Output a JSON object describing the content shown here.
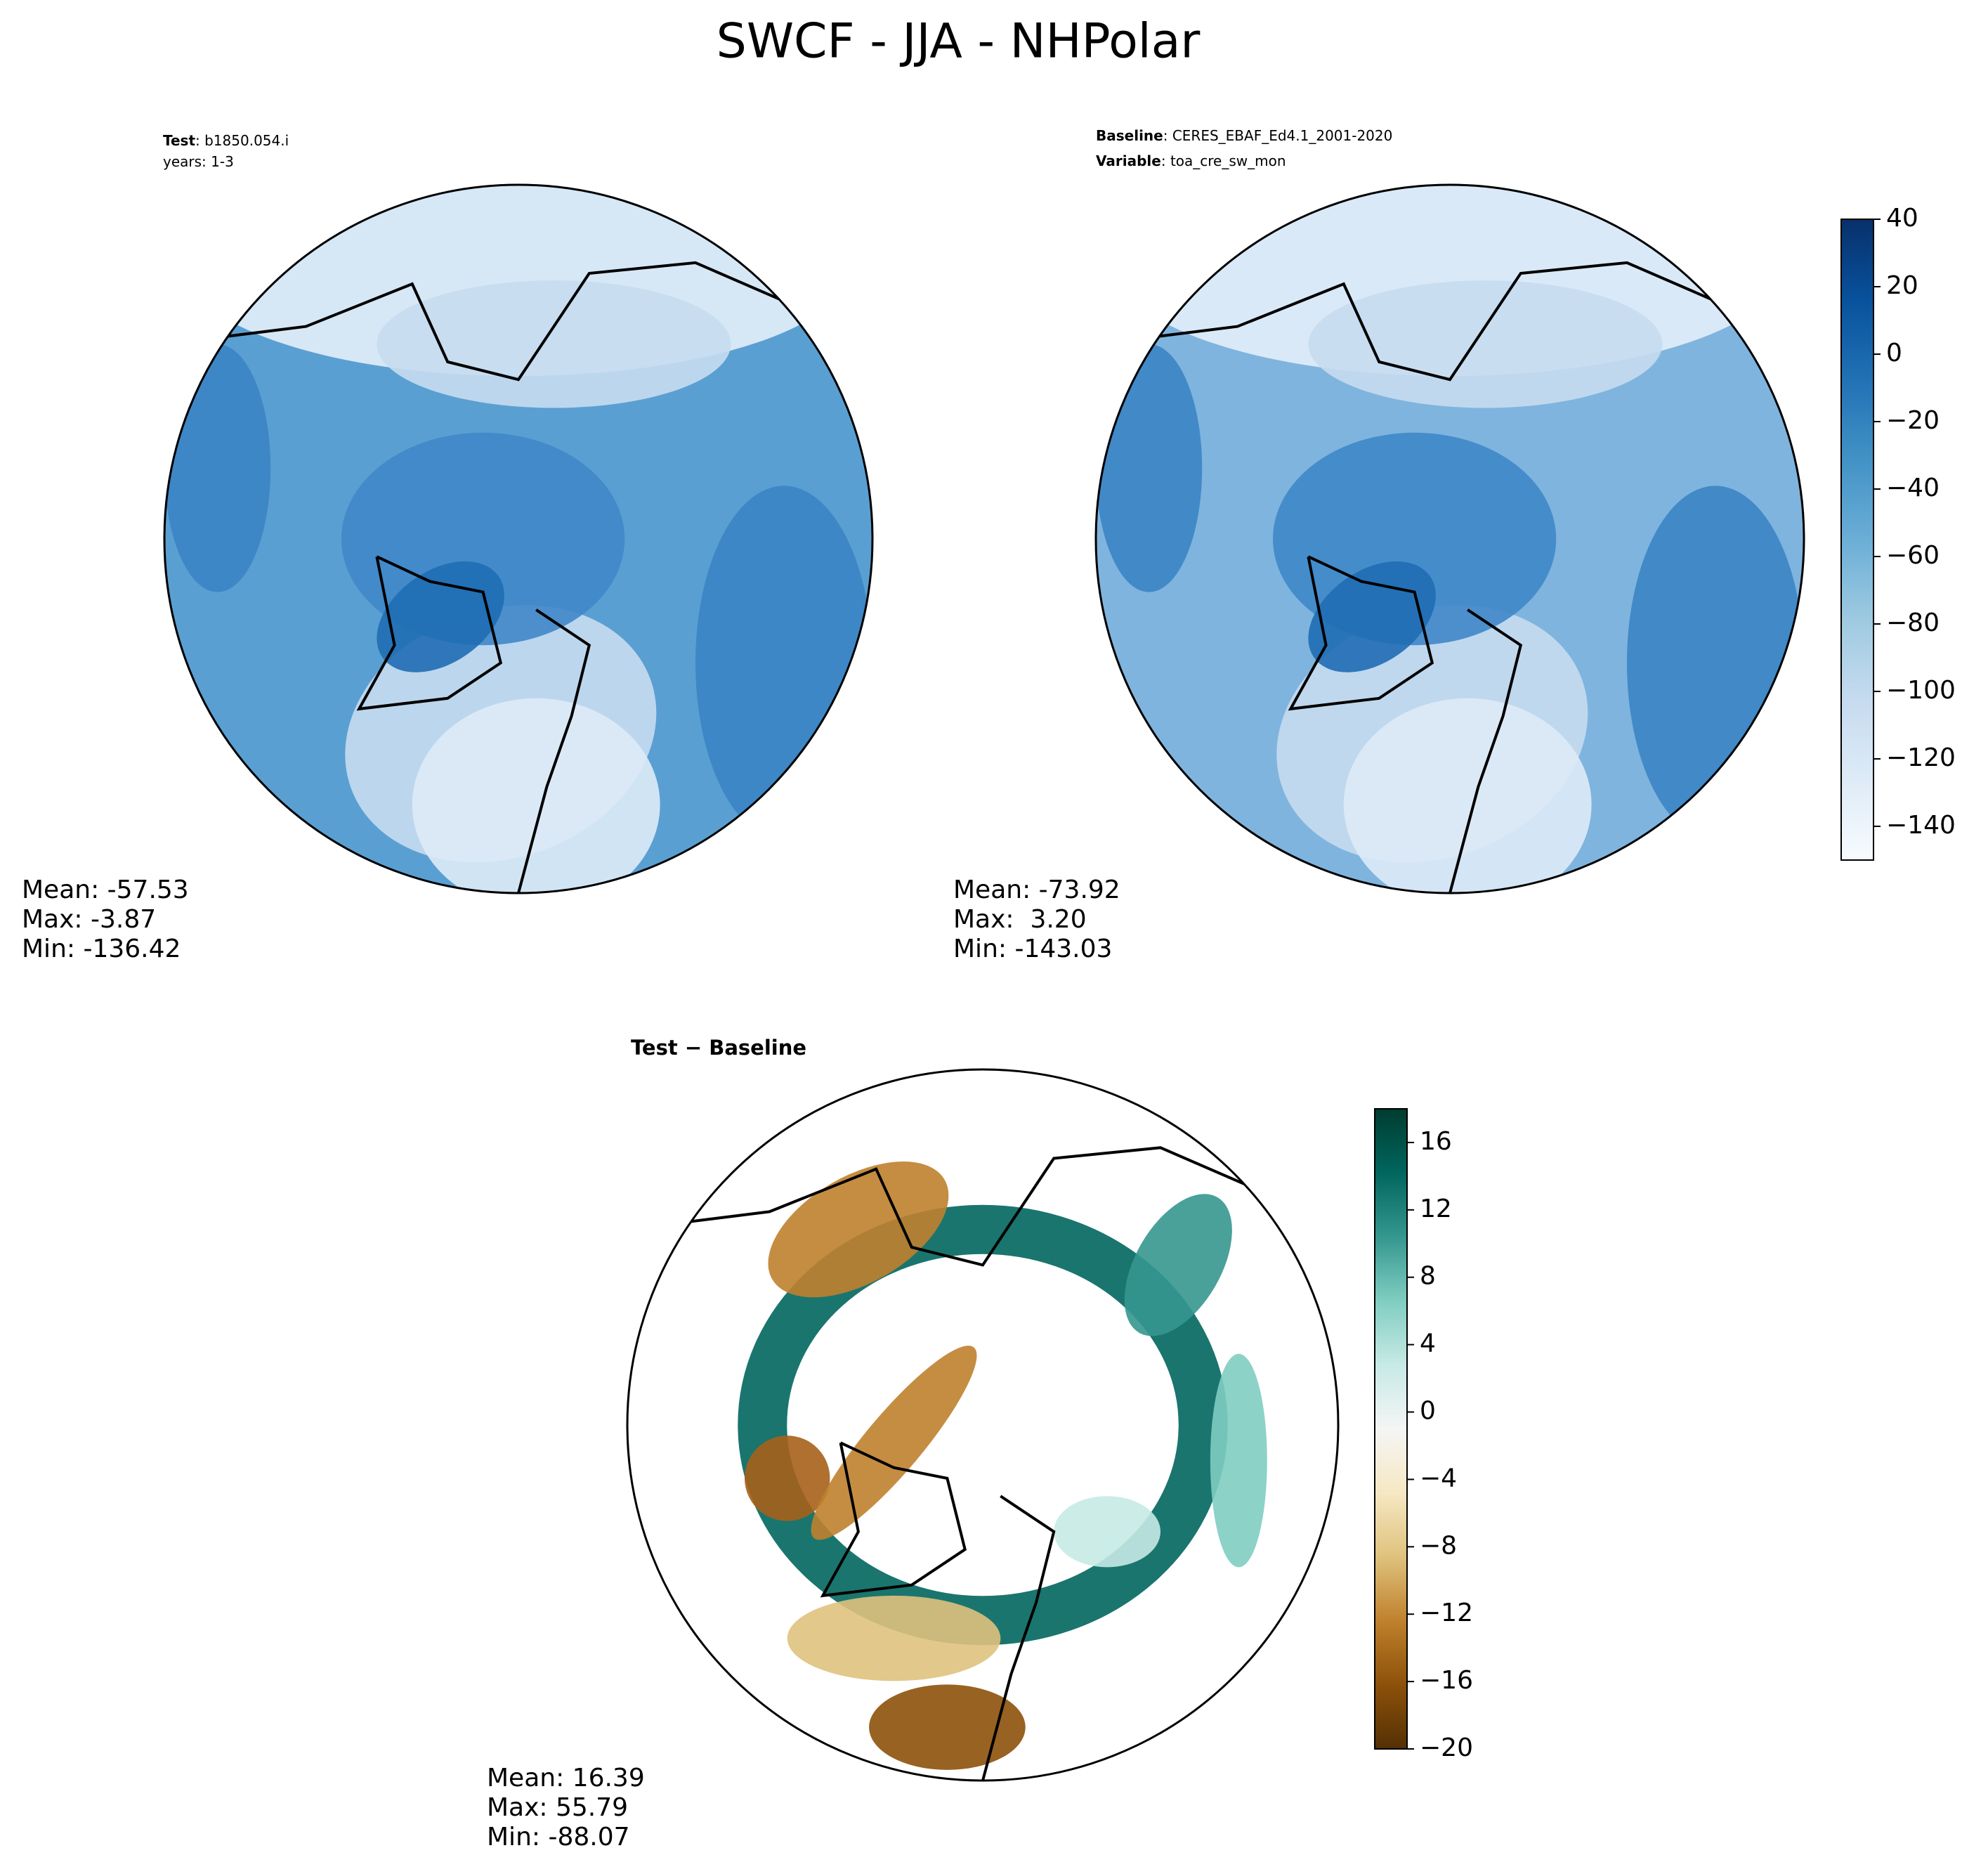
{
  "title": "SWCF - JJA - NHPolar",
  "panels": [
    {
      "heading": [
        {
          "bold": "Test",
          "text": ": b1850.054.i"
        },
        {
          "text": "years: 1-3"
        }
      ],
      "stats": [
        "Mean: -57.53",
        "Max: -3.87",
        "Min: -136.42"
      ]
    },
    {
      "heading": [
        {
          "bold": "Baseline",
          "text": ": CERES_EBAF_Ed4.1_2001-2020"
        },
        {
          "bold": "Variable",
          "text": ": toa_cre_sw_mon"
        }
      ],
      "stats": [
        "Mean: -73.92",
        "Max:  3.20",
        "Min: -143.03"
      ]
    },
    {
      "heading": [
        {
          "bold": "Test − Baseline"
        }
      ],
      "stats": [
        "Mean: 16.39",
        "Max: 55.79",
        "Min: -88.07"
      ]
    }
  ],
  "colorbars": [
    {
      "lim": [
        -150,
        40
      ],
      "ticks": [
        40,
        20,
        0,
        {
          "value": -20,
          "label": "−20"
        },
        {
          "value": -40,
          "label": "−40"
        },
        {
          "value": -60,
          "label": "−60"
        },
        {
          "value": -80,
          "label": "−80"
        },
        {
          "value": -100,
          "label": "−100"
        },
        {
          "value": -120,
          "label": "−120"
        },
        {
          "value": -140,
          "label": "−140"
        }
      ],
      "colors": [
        "#f7fbff",
        "#deebf7",
        "#c6dbef",
        "#9ecae1",
        "#6baed6",
        "#4292c6",
        "#2171b5",
        "#08519c",
        "#08306b"
      ]
    },
    {
      "lim": [
        -20,
        18
      ],
      "ticks": [
        16,
        12,
        8,
        4,
        0,
        {
          "value": -4,
          "label": "−4"
        },
        {
          "value": -8,
          "label": "−8"
        },
        {
          "value": -12,
          "label": "−12"
        },
        {
          "value": -16,
          "label": "−16"
        },
        {
          "value": -20,
          "label": "−20"
        }
      ],
      "colors": [
        "#543005",
        "#8c510a",
        "#bf812d",
        "#dfc27d",
        "#f6e8c3",
        "#f5f5f5",
        "#c7eae5",
        "#80cdc1",
        "#35978f",
        "#01665e",
        "#003c30"
      ]
    }
  ]
}
